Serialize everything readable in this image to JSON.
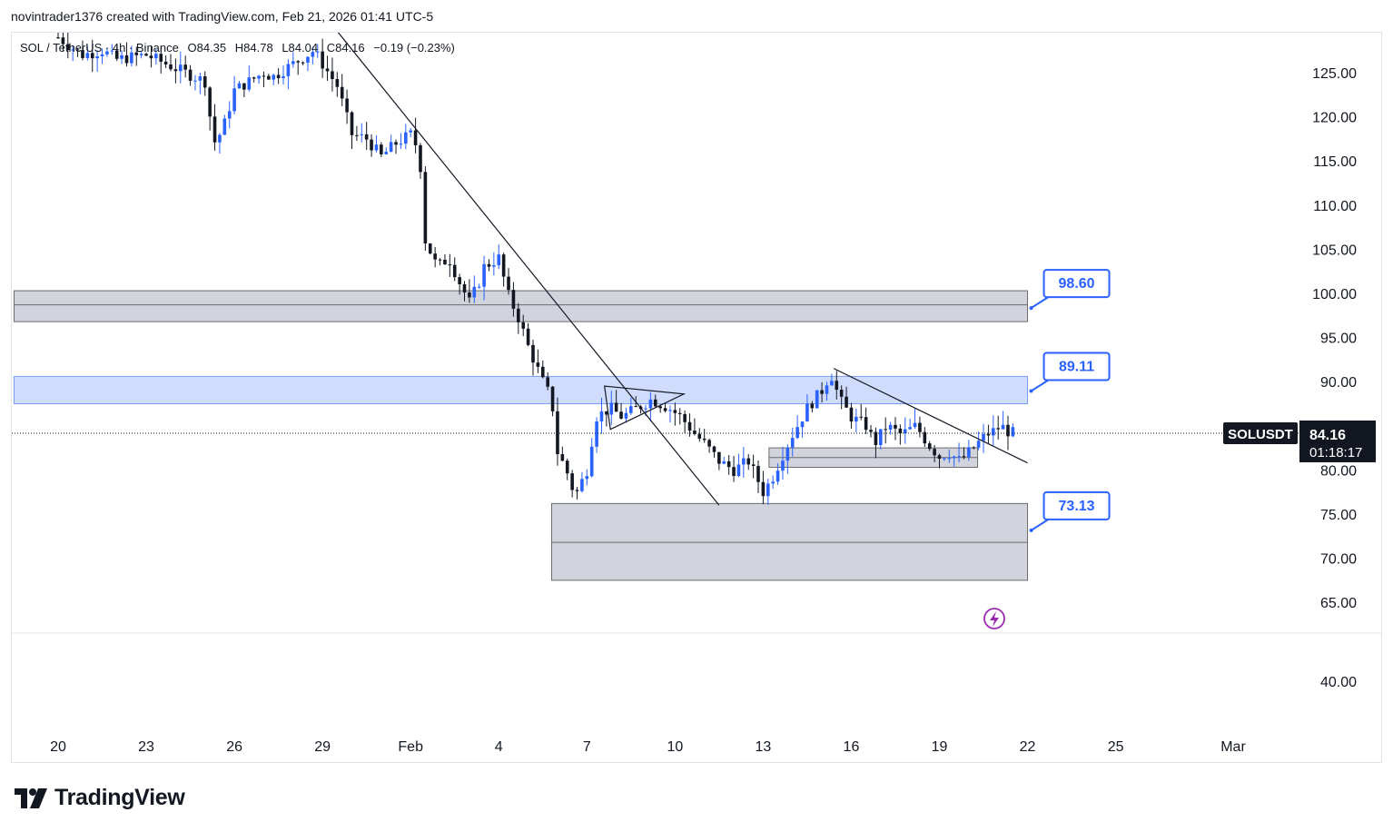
{
  "header": {
    "attribution": "novintrader1376 created with TradingView.com, Feb 21, 2026 01:41 UTC-5"
  },
  "legend": {
    "symbol": "SOL / TetherUS · 4h · Binance",
    "open": "O84.35",
    "high": "H84.78",
    "low": "L84.04",
    "close": "C84.16",
    "change": "−0.19 (−0.23%)"
  },
  "brand": {
    "name": "TradingView"
  },
  "colors": {
    "up": "#2962ff",
    "down": "#131722",
    "zone_gray": "#d1d4dc",
    "zone_blue": "#cfdcfc",
    "callout": "#2962ff",
    "ticker_bg": "#131722",
    "alert": "#9c27b0"
  },
  "chart_data": {
    "type": "candlestick",
    "symbol": "SOLUSDT",
    "timeframe": "4h",
    "last_price": "84.16",
    "countdown": "01:18:17",
    "y_ticks": [
      "125.00",
      "120.00",
      "115.00",
      "110.00",
      "105.00",
      "100.00",
      "95.00",
      "90.00",
      "85.00",
      "80.00",
      "75.00",
      "70.00",
      "65.00",
      "40.00"
    ],
    "y_tick_values": [
      125,
      120,
      115,
      110,
      105,
      100,
      95,
      90,
      85,
      80,
      75,
      70,
      65,
      40
    ],
    "x_ticks": [
      "20",
      "23",
      "26",
      "29",
      "Feb",
      "4",
      "7",
      "10",
      "13",
      "16",
      "19",
      "22",
      "25",
      "Mar"
    ],
    "x_tick_days": [
      0,
      3,
      6,
      9,
      12,
      15,
      18,
      21,
      24,
      27,
      30,
      33,
      36,
      40
    ],
    "x_start": "Jan 20",
    "price_points": [
      [
        0,
        129
      ],
      [
        0.8,
        127
      ],
      [
        1.5,
        127.5
      ],
      [
        2,
        126.5
      ],
      [
        3,
        127
      ],
      [
        4,
        125.5
      ],
      [
        5,
        124
      ],
      [
        5.3,
        117
      ],
      [
        5.6,
        118.5
      ],
      [
        6,
        123
      ],
      [
        6.5,
        124
      ],
      [
        7,
        125
      ],
      [
        7.3,
        124.5
      ],
      [
        8,
        126
      ],
      [
        8.7,
        127.5
      ],
      [
        9,
        126
      ],
      [
        9.5,
        123.5
      ],
      [
        10,
        118
      ],
      [
        10.5,
        117.5
      ],
      [
        11,
        115.5
      ],
      [
        11.5,
        117
      ],
      [
        12,
        118
      ],
      [
        12.3,
        116
      ],
      [
        12.5,
        106
      ],
      [
        12.9,
        103
      ],
      [
        13.3,
        104
      ],
      [
        13.7,
        101
      ],
      [
        14,
        99
      ],
      [
        14.3,
        101
      ],
      [
        14.5,
        103
      ],
      [
        15,
        104
      ],
      [
        15.3,
        100
      ],
      [
        15.7,
        97
      ],
      [
        16,
        94
      ],
      [
        16.5,
        90
      ],
      [
        16.8,
        88
      ],
      [
        17,
        82
      ],
      [
        17.3,
        80
      ],
      [
        17.6,
        77
      ],
      [
        18,
        80
      ],
      [
        18.3,
        86
      ],
      [
        18.8,
        87
      ],
      [
        19.2,
        86
      ],
      [
        19.7,
        87
      ],
      [
        20.2,
        88
      ],
      [
        20.8,
        87
      ],
      [
        21.2,
        86
      ],
      [
        21.7,
        84
      ],
      [
        22,
        83
      ],
      [
        22.5,
        81
      ],
      [
        23,
        80
      ],
      [
        23.5,
        81
      ],
      [
        23.8,
        79
      ],
      [
        24,
        77.5
      ],
      [
        24.3,
        79
      ],
      [
        24.7,
        82
      ],
      [
        25,
        84
      ],
      [
        25.5,
        87
      ],
      [
        26,
        89
      ],
      [
        26.3,
        91
      ],
      [
        26.6,
        88
      ],
      [
        27,
        86
      ],
      [
        27.5,
        85
      ],
      [
        27.8,
        83
      ],
      [
        28.2,
        85
      ],
      [
        28.7,
        84
      ],
      [
        29.2,
        85
      ],
      [
        29.6,
        83
      ],
      [
        30,
        81.5
      ],
      [
        30.3,
        82
      ],
      [
        30.7,
        81
      ],
      [
        31,
        82
      ],
      [
        31.3,
        83
      ],
      [
        31.6,
        84
      ],
      [
        31.9,
        84.5
      ],
      [
        32.1,
        85
      ],
      [
        32.4,
        84.2
      ],
      [
        32.6,
        84.16
      ]
    ],
    "zones": [
      {
        "label": "98.60",
        "low": 96.8,
        "high": 100.3,
        "mid": 98.7,
        "from_day": -1.5,
        "to_day": 33.0,
        "color": "gray"
      },
      {
        "label": "89.11",
        "low": 87.5,
        "high": 90.6,
        "from_day": -1.5,
        "to_day": 33.0,
        "color": "blue"
      },
      {
        "label": "73.13",
        "low": 67.5,
        "high": 76.2,
        "mid": 71.8,
        "from_day": 16.8,
        "to_day": 33.0,
        "color": "gray"
      },
      {
        "label": "",
        "low": 80.3,
        "high": 82.5,
        "mid": 81.4,
        "from_day": 24.2,
        "to_day": 31.3,
        "color": "gray"
      }
    ],
    "trendlines": [
      {
        "from": [
          8.7,
          133
        ],
        "to": [
          22.5,
          76
        ]
      },
      {
        "from": [
          26.4,
          91.5
        ],
        "to": [
          33.0,
          80.8
        ]
      }
    ],
    "triangle": [
      [
        18.6,
        89.5
      ],
      [
        21.3,
        88.6
      ],
      [
        18.8,
        84.6
      ]
    ]
  }
}
